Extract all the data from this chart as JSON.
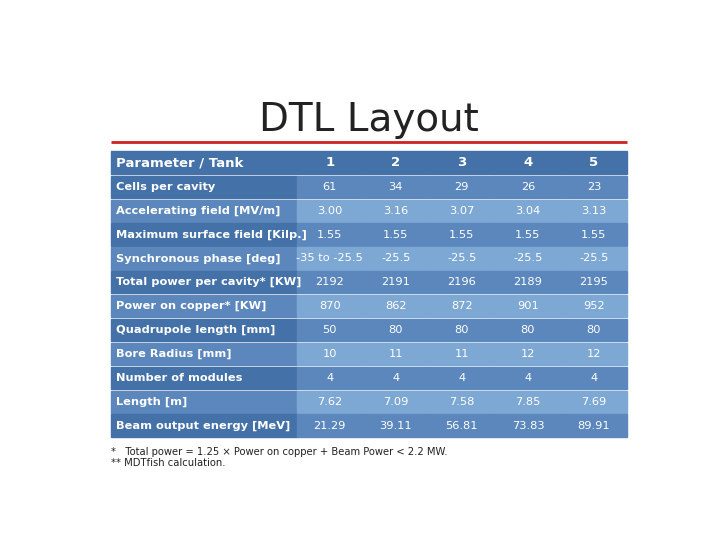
{
  "title": "DTL Layout",
  "title_fontsize": 28,
  "background_color": "#ffffff",
  "col1_bg_dark": "#4472a8",
  "col1_bg_light": "#5b87bc",
  "data_bg_dark": "#5b87bc",
  "data_bg_light": "#7ea8d4",
  "header_bg": "#4472a8",
  "row_gap_color": "#ffffff",
  "headers": [
    "Parameter / Tank",
    "1",
    "2",
    "3",
    "4",
    "5"
  ],
  "rows": [
    [
      "Cells per cavity",
      "61",
      "34",
      "29",
      "26",
      "23"
    ],
    [
      "Accelerating field [MV/m]",
      "3.00",
      "3.16",
      "3.07",
      "3.04",
      "3.13"
    ],
    [
      "Maximum surface field [Kilp.]",
      "1.55",
      "1.55",
      "1.55",
      "1.55",
      "1.55"
    ],
    [
      "Synchronous phase [deg]",
      "-35 to -25.5",
      "-25.5",
      "-25.5",
      "-25.5",
      "-25.5"
    ],
    [
      "Total power per cavity* [KW]",
      "2192",
      "2191",
      "2196",
      "2189",
      "2195"
    ],
    [
      "Power on copper* [KW]",
      "870",
      "862",
      "872",
      "901",
      "952"
    ],
    [
      "Quadrupole length [mm]",
      "50",
      "80",
      "80",
      "80",
      "80"
    ],
    [
      "Bore Radius [mm]",
      "10",
      "11",
      "11",
      "12",
      "12"
    ],
    [
      "Number of modules",
      "4",
      "4",
      "4",
      "4",
      "4"
    ],
    [
      "Length [m]",
      "7.62",
      "7.09",
      "7.58",
      "7.85",
      "7.69"
    ],
    [
      "Beam output energy [MeV]",
      "21.29",
      "39.11",
      "56.81",
      "73.83",
      "89.91"
    ]
  ],
  "footnote1": "*   Total power = 1.25 × Power on copper + Beam Power < 2.2 MW.",
  "footnote2": "** MDTfish calculation.",
  "divider_color": "#cc2222",
  "text_color": "#ffffff",
  "footnote_color": "#222222"
}
